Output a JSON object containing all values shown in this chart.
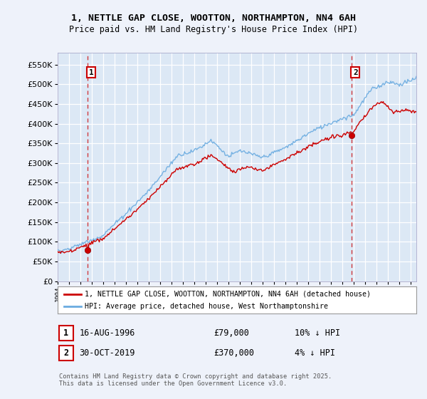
{
  "title_line1": "1, NETTLE GAP CLOSE, WOOTTON, NORTHAMPTON, NN4 6AH",
  "title_line2": "Price paid vs. HM Land Registry's House Price Index (HPI)",
  "background_color": "#eef2fa",
  "plot_bg_color": "#dce8f5",
  "grid_color": "#ffffff",
  "hpi_color": "#6aabe0",
  "price_color": "#cc0000",
  "marker_color": "#cc0000",
  "annotation1_label": "1",
  "annotation1_date": "16-AUG-1996",
  "annotation1_price": "£79,000",
  "annotation1_hpi": "10% ↓ HPI",
  "annotation2_label": "2",
  "annotation2_date": "30-OCT-2019",
  "annotation2_price": "£370,000",
  "annotation2_hpi": "4% ↓ HPI",
  "legend_line1": "1, NETTLE GAP CLOSE, WOOTTON, NORTHAMPTON, NN4 6AH (detached house)",
  "legend_line2": "HPI: Average price, detached house, West Northamptonshire",
  "footer": "Contains HM Land Registry data © Crown copyright and database right 2025.\nThis data is licensed under the Open Government Licence v3.0.",
  "ylim": [
    0,
    580000
  ],
  "yticks": [
    0,
    50000,
    100000,
    150000,
    200000,
    250000,
    300000,
    350000,
    400000,
    450000,
    500000,
    550000
  ],
  "sale1_year": 1996.62,
  "sale1_price": 79000,
  "sale2_year": 2019.83,
  "sale2_price": 370000,
  "xmin": 1994,
  "xmax": 2025.5
}
